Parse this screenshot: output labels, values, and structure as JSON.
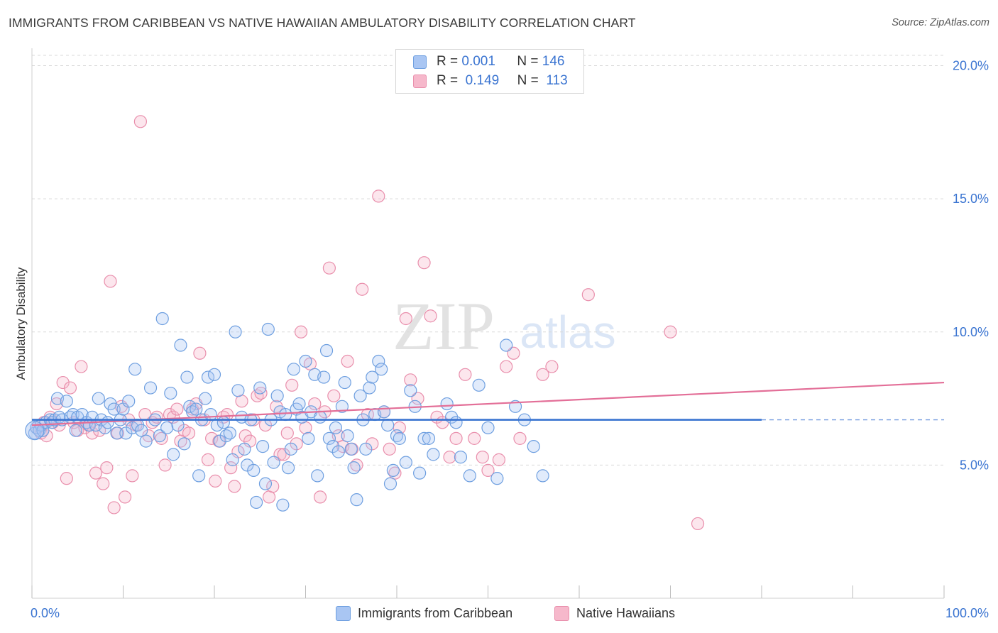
{
  "header": {
    "title": "IMMIGRANTS FROM CARIBBEAN VS NATIVE HAWAIIAN AMBULATORY DISABILITY CORRELATION CHART",
    "source": "Source: ZipAtlas.com"
  },
  "watermark": {
    "zip": "ZIP",
    "atlas": "atlas"
  },
  "legend": {
    "rows": [
      {
        "r_label": "R =",
        "r_value": "0.001",
        "n_label": "N =",
        "n_value": "146",
        "color": "#a9c6f3"
      },
      {
        "r_label": "R =",
        "r_value": "0.149",
        "n_label": "N =",
        "n_value": "113",
        "color": "#f6b8cb"
      }
    ]
  },
  "bottom_legend": {
    "blue_label": "Immigrants from Caribbean",
    "pink_label": "Native Hawaiians"
  },
  "axis": {
    "x_min_label": "0.0%",
    "x_max_label": "100.0%",
    "ylabel": "Ambulatory Disability",
    "y_ticks": [
      "5.0%",
      "10.0%",
      "15.0%",
      "20.0%"
    ]
  },
  "colors": {
    "blue_fill": "#a9c6f3",
    "blue_stroke": "#6e9fe0",
    "blue_line": "#3a74d1",
    "pink_fill": "#f6b8cb",
    "pink_stroke": "#e98fac",
    "pink_line": "#e36f98",
    "axis_text": "#3a74d1",
    "grid": "#d9d9d9"
  },
  "chart_data": {
    "type": "scatter",
    "title": "IMMIGRANTS FROM CARIBBEAN VS NATIVE HAWAIIAN AMBULATORY DISABILITY CORRELATION CHART",
    "xlabel": "",
    "ylabel": "Ambulatory Disability",
    "xlim": [
      0,
      100
    ],
    "ylim": [
      0,
      20.6
    ],
    "y_gridlines": [
      5,
      10,
      15,
      20
    ],
    "series": [
      {
        "name": "Immigrants from Caribbean",
        "r": 0.001,
        "n": 146,
        "trend": {
          "x": [
            0,
            80
          ],
          "y": [
            6.7,
            6.7
          ],
          "dashed_extension_to": 100
        },
        "points": [
          [
            0.3,
            6.2
          ],
          [
            0.5,
            6.4
          ],
          [
            0.8,
            6.3
          ],
          [
            1.0,
            6.5
          ],
          [
            1.2,
            6.3
          ],
          [
            1.5,
            6.6
          ],
          [
            2.0,
            6.7
          ],
          [
            2.2,
            6.6
          ],
          [
            2.5,
            6.7
          ],
          [
            2.8,
            7.5
          ],
          [
            3.0,
            6.8
          ],
          [
            3.3,
            6.7
          ],
          [
            3.8,
            7.4
          ],
          [
            4.2,
            6.8
          ],
          [
            4.5,
            6.9
          ],
          [
            4.8,
            6.3
          ],
          [
            5.0,
            6.8
          ],
          [
            5.5,
            6.9
          ],
          [
            6.0,
            6.6
          ],
          [
            6.3,
            6.5
          ],
          [
            6.6,
            6.8
          ],
          [
            7.0,
            6.5
          ],
          [
            7.3,
            7.5
          ],
          [
            7.6,
            6.7
          ],
          [
            8.0,
            6.4
          ],
          [
            8.3,
            6.6
          ],
          [
            8.6,
            7.3
          ],
          [
            9.0,
            7.1
          ],
          [
            9.3,
            6.2
          ],
          [
            9.7,
            6.7
          ],
          [
            10.0,
            7.1
          ],
          [
            10.3,
            6.2
          ],
          [
            10.6,
            7.4
          ],
          [
            11.0,
            6.4
          ],
          [
            11.3,
            8.6
          ],
          [
            11.6,
            6.5
          ],
          [
            12.0,
            6.3
          ],
          [
            12.5,
            5.9
          ],
          [
            13.0,
            7.9
          ],
          [
            13.5,
            6.7
          ],
          [
            14.0,
            6.1
          ],
          [
            14.3,
            10.5
          ],
          [
            14.8,
            6.4
          ],
          [
            15.2,
            7.7
          ],
          [
            15.5,
            5.4
          ],
          [
            16.0,
            6.5
          ],
          [
            16.3,
            9.5
          ],
          [
            16.7,
            5.8
          ],
          [
            17.0,
            8.3
          ],
          [
            17.3,
            7.2
          ],
          [
            17.6,
            7.0
          ],
          [
            18.0,
            7.1
          ],
          [
            18.3,
            4.6
          ],
          [
            18.6,
            6.7
          ],
          [
            19.0,
            7.5
          ],
          [
            19.3,
            8.3
          ],
          [
            19.6,
            6.9
          ],
          [
            20.0,
            8.4
          ],
          [
            20.3,
            6.5
          ],
          [
            20.6,
            5.9
          ],
          [
            21.0,
            6.6
          ],
          [
            21.3,
            6.1
          ],
          [
            21.7,
            6.2
          ],
          [
            22.0,
            5.2
          ],
          [
            22.3,
            10.0
          ],
          [
            22.6,
            7.8
          ],
          [
            23.0,
            6.8
          ],
          [
            23.3,
            5.6
          ],
          [
            23.6,
            5.0
          ],
          [
            24.0,
            6.7
          ],
          [
            24.3,
            4.8
          ],
          [
            24.6,
            3.6
          ],
          [
            25.0,
            7.9
          ],
          [
            25.3,
            5.7
          ],
          [
            25.6,
            4.3
          ],
          [
            25.9,
            10.1
          ],
          [
            26.2,
            6.7
          ],
          [
            26.5,
            5.1
          ],
          [
            26.9,
            7.6
          ],
          [
            27.2,
            7.0
          ],
          [
            27.5,
            3.5
          ],
          [
            27.8,
            6.9
          ],
          [
            28.1,
            4.9
          ],
          [
            28.4,
            5.6
          ],
          [
            28.7,
            8.6
          ],
          [
            29.0,
            7.1
          ],
          [
            29.3,
            7.3
          ],
          [
            29.6,
            6.8
          ],
          [
            30.0,
            8.9
          ],
          [
            30.3,
            6.0
          ],
          [
            30.6,
            7.0
          ],
          [
            31.0,
            8.4
          ],
          [
            31.3,
            4.6
          ],
          [
            31.6,
            6.8
          ],
          [
            32.0,
            8.3
          ],
          [
            32.3,
            9.3
          ],
          [
            32.6,
            6.0
          ],
          [
            33.0,
            5.7
          ],
          [
            33.3,
            6.4
          ],
          [
            33.6,
            5.5
          ],
          [
            34.0,
            7.2
          ],
          [
            34.3,
            8.1
          ],
          [
            34.6,
            6.1
          ],
          [
            35.0,
            5.6
          ],
          [
            35.3,
            4.9
          ],
          [
            35.6,
            3.7
          ],
          [
            36.0,
            7.6
          ],
          [
            36.3,
            6.7
          ],
          [
            36.6,
            5.6
          ],
          [
            37.0,
            7.9
          ],
          [
            37.3,
            8.3
          ],
          [
            37.6,
            6.9
          ],
          [
            38.0,
            8.9
          ],
          [
            38.3,
            8.6
          ],
          [
            38.6,
            7.0
          ],
          [
            39.0,
            6.5
          ],
          [
            39.3,
            4.3
          ],
          [
            39.6,
            4.8
          ],
          [
            40.0,
            6.1
          ],
          [
            40.3,
            6.0
          ],
          [
            41.0,
            5.1
          ],
          [
            41.5,
            7.8
          ],
          [
            42.0,
            7.2
          ],
          [
            42.5,
            4.7
          ],
          [
            43.0,
            6.0
          ],
          [
            43.5,
            6.0
          ],
          [
            44.0,
            5.4
          ],
          [
            45.5,
            7.3
          ],
          [
            46.0,
            6.8
          ],
          [
            46.5,
            6.6
          ],
          [
            47.0,
            5.3
          ],
          [
            48.0,
            4.6
          ],
          [
            49.0,
            8.0
          ],
          [
            50.0,
            6.4
          ],
          [
            51.0,
            4.5
          ],
          [
            52.0,
            9.5
          ],
          [
            53.0,
            7.2
          ],
          [
            54.0,
            6.7
          ],
          [
            55.0,
            5.7
          ],
          [
            56.0,
            4.6
          ]
        ]
      },
      {
        "name": "Native Hawaiians",
        "r": 0.149,
        "n": 113,
        "trend": {
          "x": [
            0,
            100
          ],
          "y": [
            6.5,
            8.1
          ]
        },
        "points": [
          [
            0.5,
            6.4
          ],
          [
            1.0,
            6.2
          ],
          [
            1.3,
            6.6
          ],
          [
            1.6,
            6.1
          ],
          [
            2.0,
            6.8
          ],
          [
            2.3,
            6.6
          ],
          [
            2.7,
            7.3
          ],
          [
            3.0,
            6.5
          ],
          [
            3.4,
            8.1
          ],
          [
            3.8,
            4.5
          ],
          [
            4.2,
            7.9
          ],
          [
            4.6,
            6.6
          ],
          [
            5.0,
            6.3
          ],
          [
            5.4,
            8.7
          ],
          [
            5.8,
            6.4
          ],
          [
            6.2,
            6.5
          ],
          [
            6.6,
            6.2
          ],
          [
            7.0,
            4.7
          ],
          [
            7.4,
            6.3
          ],
          [
            7.8,
            4.3
          ],
          [
            8.2,
            4.9
          ],
          [
            8.6,
            11.9
          ],
          [
            9.0,
            3.4
          ],
          [
            9.4,
            6.2
          ],
          [
            9.8,
            7.2
          ],
          [
            10.2,
            3.8
          ],
          [
            10.6,
            6.7
          ],
          [
            11.0,
            4.6
          ],
          [
            11.4,
            6.5
          ],
          [
            11.9,
            17.9
          ],
          [
            12.4,
            6.9
          ],
          [
            12.8,
            6.1
          ],
          [
            13.2,
            6.6
          ],
          [
            13.7,
            6.8
          ],
          [
            14.2,
            6.0
          ],
          [
            14.6,
            5.0
          ],
          [
            15.1,
            6.9
          ],
          [
            15.5,
            6.8
          ],
          [
            15.9,
            7.1
          ],
          [
            16.3,
            5.9
          ],
          [
            16.7,
            6.3
          ],
          [
            17.2,
            6.2
          ],
          [
            17.6,
            7.1
          ],
          [
            18.0,
            7.3
          ],
          [
            18.4,
            9.2
          ],
          [
            18.9,
            6.7
          ],
          [
            19.3,
            5.2
          ],
          [
            19.7,
            6.0
          ],
          [
            20.1,
            4.4
          ],
          [
            20.5,
            5.9
          ],
          [
            21.0,
            6.8
          ],
          [
            21.4,
            6.9
          ],
          [
            21.8,
            4.9
          ],
          [
            22.2,
            4.2
          ],
          [
            22.6,
            5.5
          ],
          [
            23.0,
            7.4
          ],
          [
            23.4,
            6.1
          ],
          [
            23.9,
            5.9
          ],
          [
            24.3,
            6.7
          ],
          [
            24.7,
            7.6
          ],
          [
            25.1,
            7.7
          ],
          [
            25.6,
            6.5
          ],
          [
            26.0,
            3.8
          ],
          [
            26.4,
            4.2
          ],
          [
            26.8,
            7.2
          ],
          [
            27.2,
            5.4
          ],
          [
            27.6,
            5.4
          ],
          [
            28.0,
            6.2
          ],
          [
            28.5,
            8.0
          ],
          [
            29.0,
            5.8
          ],
          [
            29.5,
            10.0
          ],
          [
            30.0,
            6.4
          ],
          [
            30.5,
            8.8
          ],
          [
            31.0,
            7.3
          ],
          [
            31.6,
            3.8
          ],
          [
            32.1,
            7.0
          ],
          [
            32.6,
            12.4
          ],
          [
            33.1,
            7.6
          ],
          [
            33.6,
            6.1
          ],
          [
            34.1,
            5.7
          ],
          [
            34.6,
            8.9
          ],
          [
            35.1,
            5.6
          ],
          [
            35.6,
            5.0
          ],
          [
            36.2,
            11.6
          ],
          [
            36.8,
            6.9
          ],
          [
            37.3,
            5.8
          ],
          [
            38.0,
            15.1
          ],
          [
            38.6,
            7.0
          ],
          [
            39.2,
            5.6
          ],
          [
            39.8,
            4.7
          ],
          [
            40.3,
            6.4
          ],
          [
            41.0,
            10.5
          ],
          [
            41.5,
            8.2
          ],
          [
            42.3,
            7.5
          ],
          [
            43.0,
            12.6
          ],
          [
            43.7,
            10.6
          ],
          [
            44.4,
            6.8
          ],
          [
            45.0,
            6.6
          ],
          [
            45.8,
            5.3
          ],
          [
            46.5,
            6.0
          ],
          [
            47.5,
            8.4
          ],
          [
            48.5,
            6.0
          ],
          [
            49.4,
            5.3
          ],
          [
            50.0,
            4.8
          ],
          [
            51.2,
            5.2
          ],
          [
            52.0,
            8.7
          ],
          [
            52.8,
            9.2
          ],
          [
            53.5,
            6.0
          ],
          [
            56.0,
            8.4
          ],
          [
            57.0,
            8.7
          ],
          [
            61.0,
            11.4
          ],
          [
            70.0,
            10.0
          ],
          [
            73.0,
            2.8
          ]
        ]
      }
    ]
  }
}
